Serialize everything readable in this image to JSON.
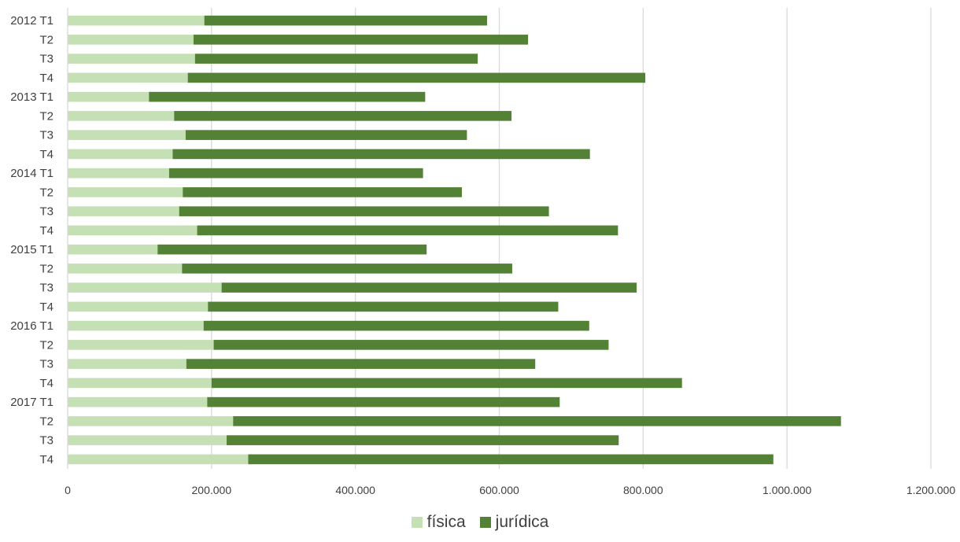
{
  "colors": {
    "fisica": "#c5e0b4",
    "juridica": "#538135",
    "grid": "#d9d9d9",
    "text": "#404040"
  },
  "chart_data": {
    "type": "bar",
    "orientation": "horizontal",
    "stacked": true,
    "categories": [
      "2012 T1",
      "T2",
      "T3",
      "T4",
      "2013 T1",
      "T2",
      "T3",
      "T4",
      "2014 T1",
      "T2",
      "T3",
      "T4",
      "2015 T1",
      "T2",
      "T3",
      "T4",
      "2016 T1",
      "T2",
      "T3",
      "T4",
      "2017 T1",
      "T2",
      "T3",
      "T4"
    ],
    "series": [
      {
        "name": "física",
        "values": [
          190000,
          175000,
          177000,
          167000,
          113000,
          148000,
          164000,
          146000,
          141000,
          160000,
          155000,
          180000,
          125000,
          159000,
          214000,
          195000,
          189000,
          203000,
          165000,
          200000,
          194000,
          230000,
          221000,
          251000
        ]
      },
      {
        "name": "jurídica",
        "values": [
          393000,
          465000,
          393000,
          636000,
          384000,
          469000,
          391000,
          580000,
          353000,
          388000,
          514000,
          585000,
          374000,
          459000,
          577000,
          487000,
          536000,
          549000,
          485000,
          654000,
          490000,
          845000,
          545000,
          730000
        ]
      }
    ],
    "xlim": [
      0,
      1200000
    ],
    "x_ticks": [
      0,
      200000,
      400000,
      600000,
      800000,
      1000000,
      1200000
    ],
    "x_tick_labels": [
      "0",
      "200.000",
      "400.000",
      "600.000",
      "800.000",
      "1.000.000",
      "1.200.000"
    ],
    "grid": "vertical",
    "legend_position": "bottom"
  }
}
